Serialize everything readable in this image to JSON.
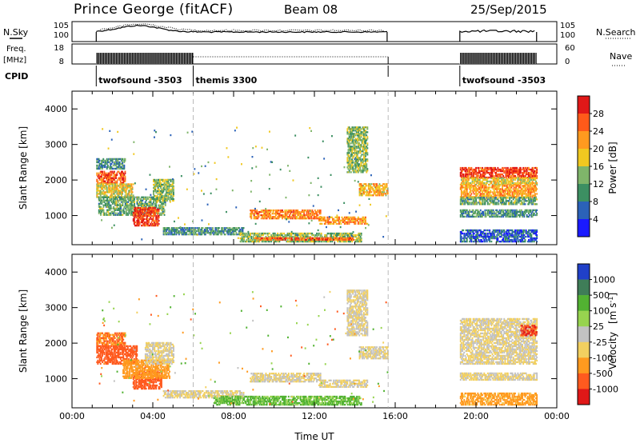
{
  "header": {
    "station": "Prince George (fitACF)",
    "beam": "Beam 08",
    "date": "25/Sep/2015"
  },
  "side_labels": {
    "nsky": "N.Sky",
    "freq": "Freq.",
    "freq_unit": "[MHz]",
    "cpid": "CPID",
    "nsearch": "N.Search",
    "nave": "Nave"
  },
  "colors": {
    "power": [
      "#1a1aff",
      "#2b62b8",
      "#3c8f62",
      "#7fb56a",
      "#f0c820",
      "#ff9a1f",
      "#ff5a1a",
      "#e01818"
    ],
    "velocity": [
      "#2040c8",
      "#3f7d58",
      "#52b232",
      "#97d44f",
      "#c2c2c2",
      "#f2d060",
      "#ff9a1f",
      "#ff5a1f",
      "#e01818"
    ],
    "ground_scatter": "#bdbdbd"
  },
  "chart_data": [
    {
      "type": "line",
      "name": "N.Sky / N.Search",
      "y_tick_labels": [
        "10^5",
        "10^0"
      ],
      "right_tick_labels": [
        "10^5",
        "10^0"
      ],
      "x_range_hours": [
        0,
        24
      ],
      "gaps_hours": [
        [
          15.65,
          19.2
        ]
      ],
      "note_style": {
        "nsky": "solid",
        "nsearch": "dotted"
      }
    },
    {
      "type": "line",
      "name": "Freq. / Nave",
      "y_tick_labels": [
        "18",
        "8"
      ],
      "right_tick_labels": [
        "60",
        "0"
      ],
      "x_range_hours": [
        0,
        24
      ],
      "freq_active_hours": [
        [
          1.2,
          6.0
        ],
        [
          19.2,
          23.0
        ]
      ],
      "nave_dotted_hours": [
        6.0,
        15.65
      ]
    },
    {
      "type": "table",
      "name": "CPID",
      "segments": [
        {
          "start": 1.2,
          "end": 6.0,
          "label": "twofsound -3503"
        },
        {
          "start": 6.0,
          "end": 15.65,
          "label": "themis 3300"
        },
        {
          "start": 19.2,
          "end": 23.0,
          "label": "twofsound -3503"
        }
      ]
    },
    {
      "type": "heatmap",
      "name": "power",
      "ylabel": "Slant Range [km]",
      "xlabel": "",
      "ylim": [
        180,
        4500
      ],
      "y_ticks": [
        1000,
        2000,
        3000,
        4000
      ],
      "x_range_hours": [
        0,
        24
      ],
      "colorbar": {
        "label": "Power [dB]",
        "ticks": [
          "28",
          "24",
          "20",
          "16",
          "12",
          "8",
          "4"
        ],
        "range": [
          0,
          32
        ]
      },
      "blobs": [
        {
          "t0": 1.2,
          "t1": 2.6,
          "r0": 1900,
          "r1": 2250,
          "db": 26
        },
        {
          "t0": 1.2,
          "t1": 3.0,
          "r0": 1500,
          "r1": 1900,
          "db": 18
        },
        {
          "t0": 1.3,
          "t1": 4.6,
          "r0": 1000,
          "r1": 1500,
          "db": 12
        },
        {
          "t0": 3.0,
          "t1": 4.3,
          "r0": 700,
          "r1": 1200,
          "db": 28
        },
        {
          "t0": 4.0,
          "t1": 5.0,
          "r0": 1400,
          "r1": 2000,
          "db": 14
        },
        {
          "t0": 1.2,
          "t1": 2.6,
          "r0": 2300,
          "r1": 2600,
          "db": 10
        },
        {
          "t0": 4.5,
          "t1": 8.5,
          "r0": 450,
          "r1": 650,
          "db": 10
        },
        {
          "t0": 8.3,
          "t1": 14.3,
          "r0": 250,
          "r1": 480,
          "db": 14
        },
        {
          "t0": 9.0,
          "t1": 14.0,
          "r0": 300,
          "r1": 380,
          "db": 26
        },
        {
          "t0": 8.8,
          "t1": 12.3,
          "r0": 900,
          "r1": 1150,
          "db": 24
        },
        {
          "t0": 12.2,
          "t1": 14.6,
          "r0": 750,
          "r1": 950,
          "db": 22
        },
        {
          "t0": 14.2,
          "t1": 15.6,
          "r0": 1550,
          "r1": 1900,
          "db": 20
        },
        {
          "t0": 13.6,
          "t1": 14.6,
          "r0": 2200,
          "r1": 3500,
          "db": 14
        },
        {
          "t0": 19.2,
          "t1": 23.0,
          "r0": 2050,
          "r1": 2350,
          "db": 28
        },
        {
          "t0": 19.2,
          "t1": 23.0,
          "r0": 1850,
          "r1": 2050,
          "db": 18
        },
        {
          "t0": 19.2,
          "t1": 23.0,
          "r0": 1500,
          "r1": 1850,
          "db": 22
        },
        {
          "t0": 19.2,
          "t1": 23.0,
          "r0": 1300,
          "r1": 1500,
          "db": 12
        },
        {
          "t0": 19.2,
          "t1": 23.0,
          "r0": 950,
          "r1": 1150,
          "db": 10
        },
        {
          "t0": 19.2,
          "t1": 23.0,
          "r0": 250,
          "r1": 600,
          "db": 6
        }
      ]
    },
    {
      "type": "heatmap",
      "name": "velocity",
      "ylabel": "Slant Range [km]",
      "xlabel": "Time UT",
      "ylim": [
        180,
        4500
      ],
      "y_ticks": [
        1000,
        2000,
        3000,
        4000
      ],
      "x_ticks": [
        "00:00",
        "04:00",
        "08:00",
        "12:00",
        "16:00",
        "20:00",
        "00:00"
      ],
      "x_range_hours": [
        0,
        24
      ],
      "colorbar": {
        "label": "Velocity",
        "unit": "[m s",
        "unit_exp": "-1",
        "unit_close": "]",
        "ticks": [
          "1000",
          "500",
          "100",
          "25",
          "-25",
          "-100",
          "-500",
          "-1000"
        ]
      },
      "blobs": [
        {
          "t0": 1.2,
          "t1": 2.6,
          "r0": 1900,
          "r1": 2300,
          "v": -100
        },
        {
          "t0": 1.2,
          "t1": 3.2,
          "r0": 1400,
          "r1": 1900,
          "v": -300
        },
        {
          "t0": 3.0,
          "t1": 4.4,
          "r0": 700,
          "r1": 1200,
          "v": -200
        },
        {
          "t0": 2.5,
          "t1": 4.8,
          "r0": 1000,
          "r1": 1500,
          "v": -60
        },
        {
          "t0": 3.6,
          "t1": 5.0,
          "r0": 1400,
          "r1": 2000,
          "v": 0
        },
        {
          "t0": 4.5,
          "t1": 8.5,
          "r0": 450,
          "r1": 650,
          "v": 0
        },
        {
          "t0": 7.0,
          "t1": 14.3,
          "r0": 250,
          "r1": 480,
          "v": 120
        },
        {
          "t0": 8.8,
          "t1": 12.3,
          "r0": 900,
          "r1": 1150,
          "v": 0
        },
        {
          "t0": 12.2,
          "t1": 14.6,
          "r0": 750,
          "r1": 950,
          "v": 0
        },
        {
          "t0": 14.2,
          "t1": 15.6,
          "r0": 1550,
          "r1": 1900,
          "v": 0
        },
        {
          "t0": 13.6,
          "t1": 14.6,
          "r0": 2200,
          "r1": 3500,
          "v": 0
        },
        {
          "t0": 19.2,
          "t1": 23.0,
          "r0": 1400,
          "r1": 2700,
          "v": 0
        },
        {
          "t0": 19.2,
          "t1": 23.0,
          "r0": 950,
          "r1": 1150,
          "v": 0
        },
        {
          "t0": 22.2,
          "t1": 23.0,
          "r0": 2200,
          "r1": 2500,
          "v": -500
        },
        {
          "t0": 19.2,
          "t1": 23.0,
          "r0": 250,
          "r1": 600,
          "v": -40
        }
      ]
    }
  ]
}
